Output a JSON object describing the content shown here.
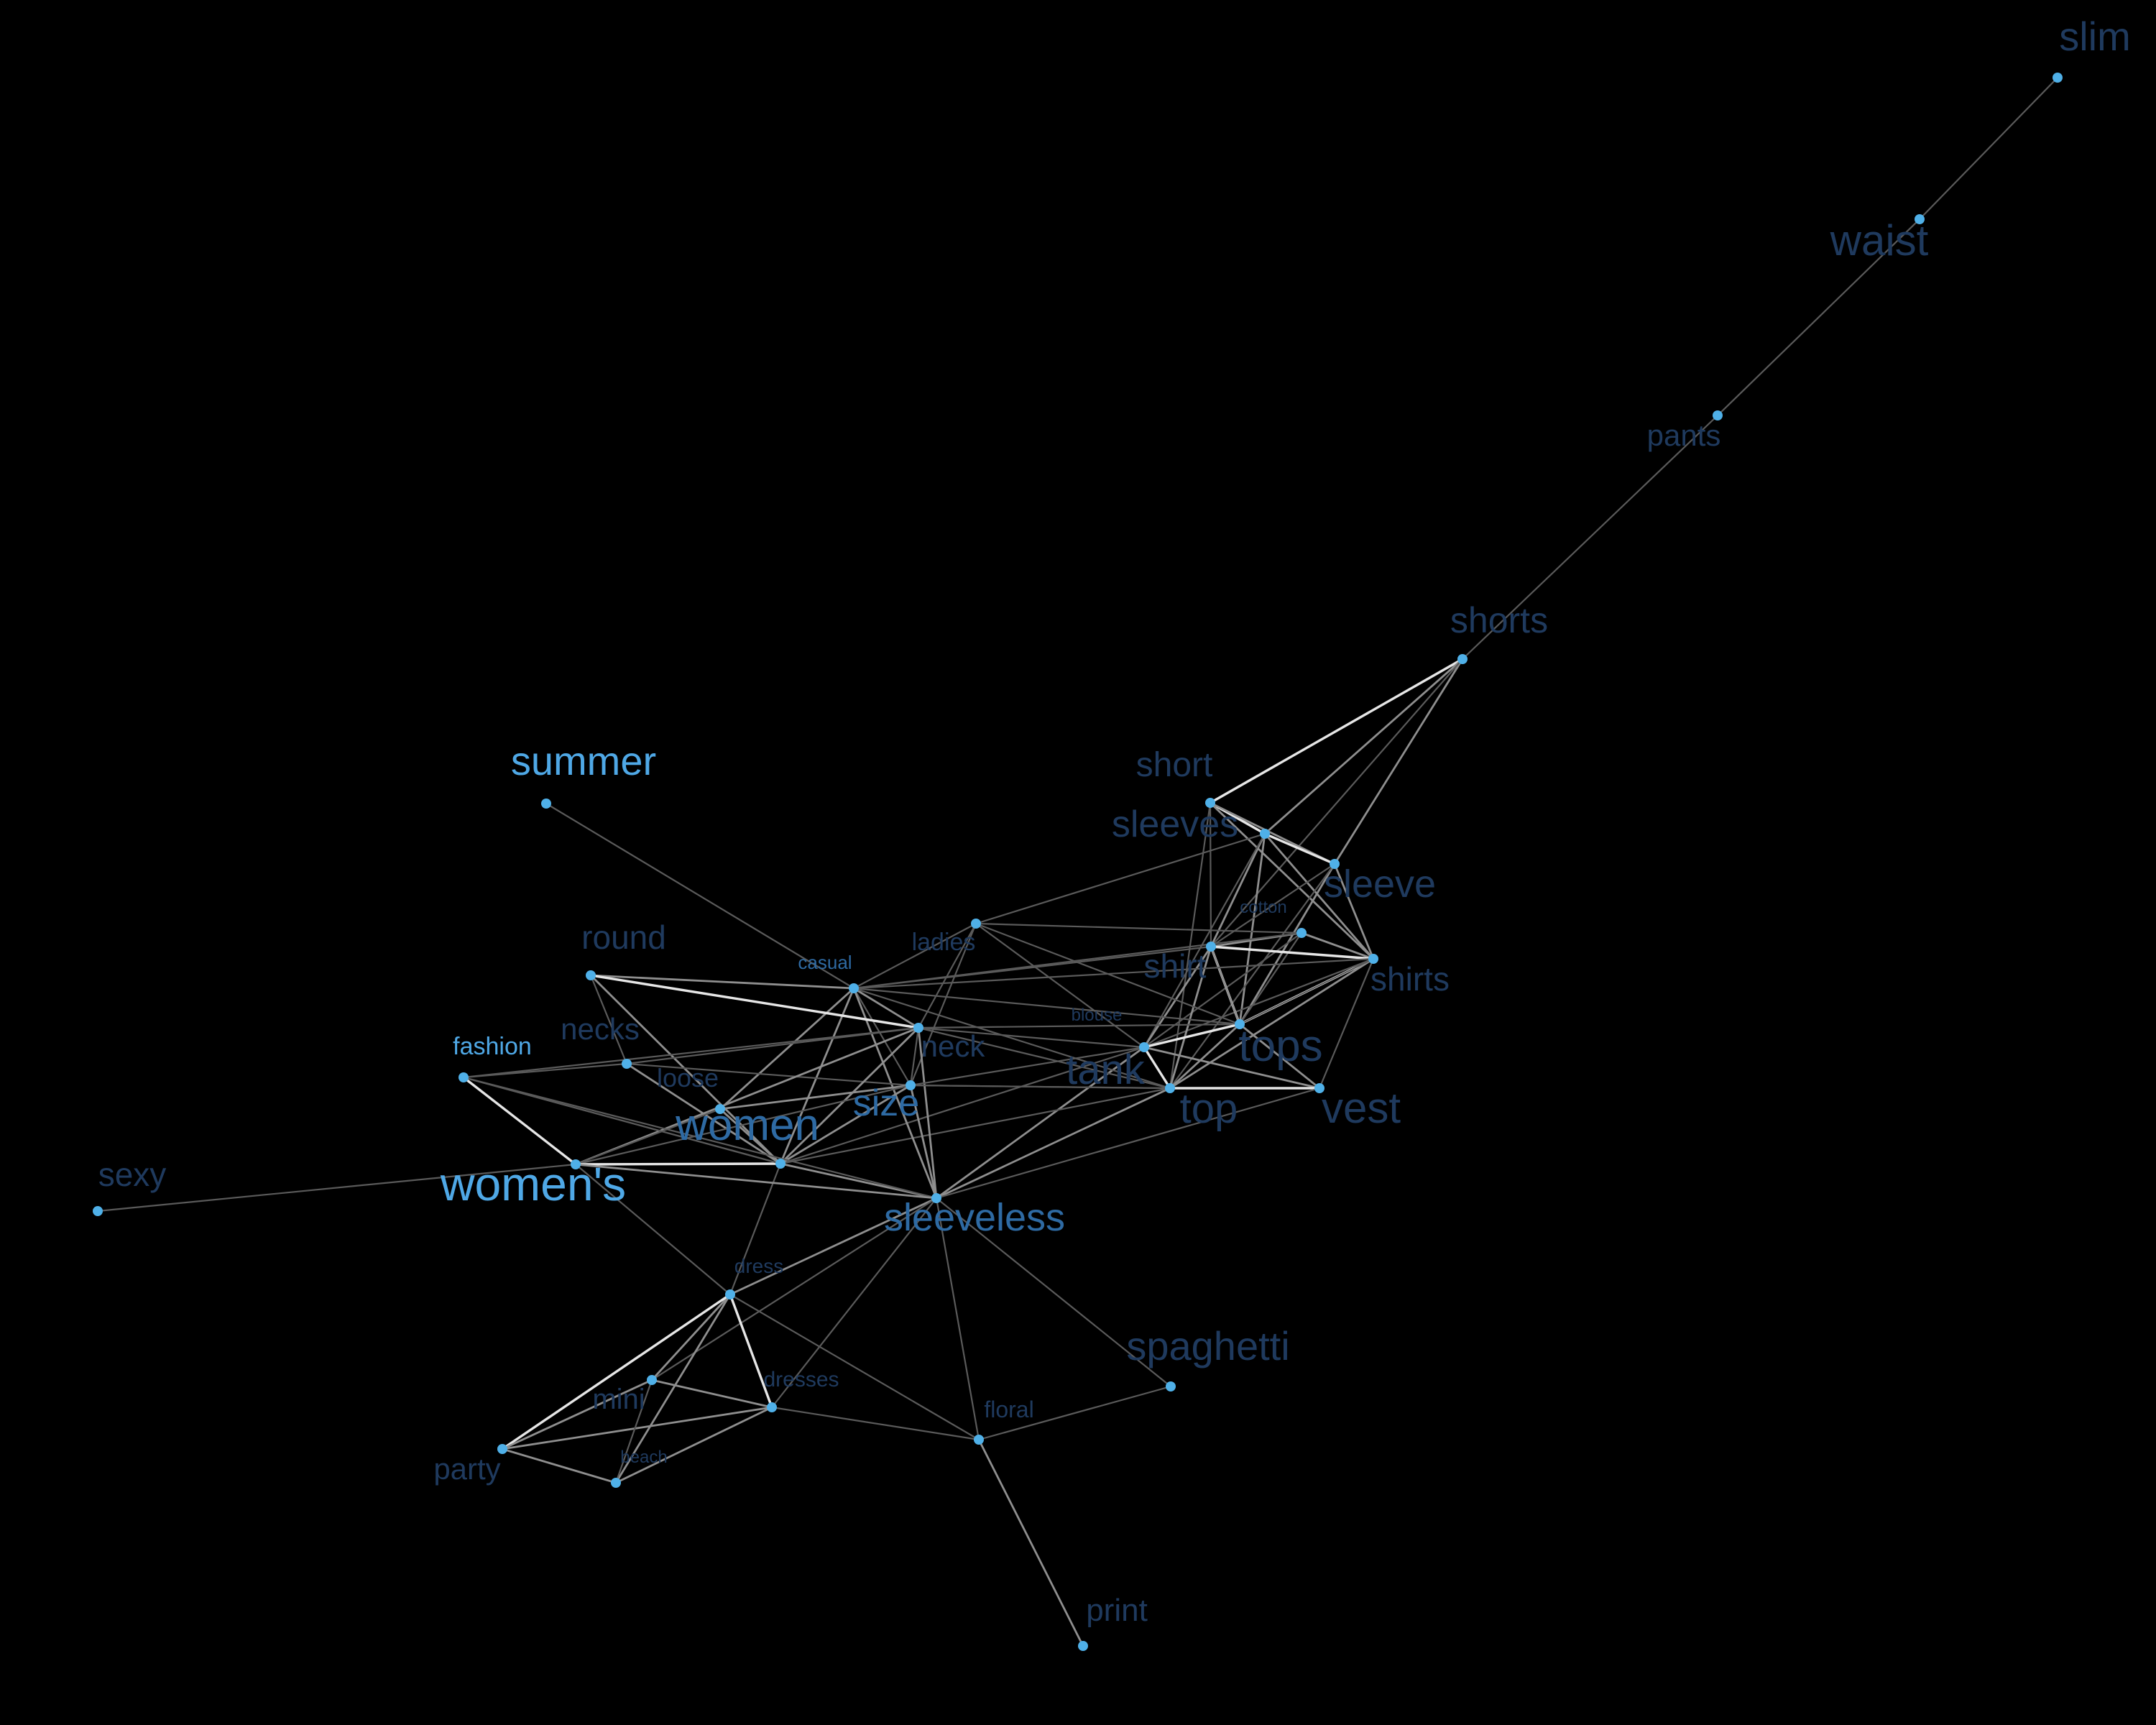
{
  "graph": {
    "node_color": "#4fb0e8",
    "background": "#000000",
    "nodes": [
      {
        "id": "slim",
        "label": "slim",
        "tone": "dark"
      },
      {
        "id": "waist",
        "label": "waist",
        "tone": "dark"
      },
      {
        "id": "pants",
        "label": "pants",
        "tone": "dark"
      },
      {
        "id": "shorts",
        "label": "shorts",
        "tone": "dark"
      },
      {
        "id": "short",
        "label": "short",
        "tone": "dark"
      },
      {
        "id": "sleeves",
        "label": "sleeves",
        "tone": "dark"
      },
      {
        "id": "sleeve",
        "label": "sleeve",
        "tone": "dark"
      },
      {
        "id": "cotton",
        "label": "cotton",
        "tone": "dark"
      },
      {
        "id": "shirts",
        "label": "shirts",
        "tone": "dark"
      },
      {
        "id": "shirt",
        "label": "shirt",
        "tone": "dark"
      },
      {
        "id": "blouse",
        "label": "blouse",
        "tone": "dark"
      },
      {
        "id": "tops",
        "label": "tops",
        "tone": "dark"
      },
      {
        "id": "tank",
        "label": "tank",
        "tone": "dark"
      },
      {
        "id": "top",
        "label": "top",
        "tone": "dark"
      },
      {
        "id": "vest",
        "label": "vest",
        "tone": "dark"
      },
      {
        "id": "summer",
        "label": "summer",
        "tone": "bright"
      },
      {
        "id": "ladies",
        "label": "ladies",
        "tone": "dark"
      },
      {
        "id": "casual",
        "label": "casual",
        "tone": "mid"
      },
      {
        "id": "round",
        "label": "round",
        "tone": "dark"
      },
      {
        "id": "necks",
        "label": "necks",
        "tone": "dark"
      },
      {
        "id": "neck",
        "label": "neck",
        "tone": "dark"
      },
      {
        "id": "loose",
        "label": "loose",
        "tone": "dark"
      },
      {
        "id": "size",
        "label": "size",
        "tone": "mid"
      },
      {
        "id": "women",
        "label": "women",
        "tone": "mid"
      },
      {
        "id": "fashion",
        "label": "fashion",
        "tone": "bright"
      },
      {
        "id": "womens",
        "label": "women's",
        "tone": "bright"
      },
      {
        "id": "sexy",
        "label": "sexy",
        "tone": "dark"
      },
      {
        "id": "sleeveless",
        "label": "sleeveless",
        "tone": "mid"
      },
      {
        "id": "dress",
        "label": "dress",
        "tone": "dark"
      },
      {
        "id": "dresses",
        "label": "dresses",
        "tone": "dark"
      },
      {
        "id": "mini",
        "label": "mini",
        "tone": "dark"
      },
      {
        "id": "beach",
        "label": "beach",
        "tone": "dark"
      },
      {
        "id": "party",
        "label": "party",
        "tone": "dark"
      },
      {
        "id": "spaghetti",
        "label": "spaghetti",
        "tone": "dark"
      },
      {
        "id": "floral",
        "label": "floral",
        "tone": "dark"
      },
      {
        "id": "print",
        "label": "print",
        "tone": "dark"
      }
    ],
    "edges": [
      [
        "slim",
        "waist",
        1
      ],
      [
        "waist",
        "pants",
        1
      ],
      [
        "pants",
        "shorts",
        1
      ],
      [
        "shorts",
        "short",
        3
      ],
      [
        "shorts",
        "sleeves",
        2
      ],
      [
        "shorts",
        "sleeve",
        2
      ],
      [
        "shorts",
        "shirt",
        1
      ],
      [
        "short",
        "sleeves",
        3
      ],
      [
        "short",
        "sleeve",
        2
      ],
      [
        "short",
        "shirts",
        2
      ],
      [
        "short",
        "shirt",
        1
      ],
      [
        "short",
        "top",
        1
      ],
      [
        "sleeves",
        "sleeve",
        3
      ],
      [
        "sleeves",
        "shirts",
        2
      ],
      [
        "sleeves",
        "tops",
        2
      ],
      [
        "sleeves",
        "shirt",
        2
      ],
      [
        "sleeves",
        "tank",
        1
      ],
      [
        "sleeves",
        "ladies",
        1
      ],
      [
        "sleeve",
        "shirts",
        2
      ],
      [
        "sleeve",
        "tops",
        2
      ],
      [
        "sleeve",
        "shirt",
        1
      ],
      [
        "sleeve",
        "top",
        1
      ],
      [
        "cotton",
        "shirt",
        2
      ],
      [
        "cotton",
        "tops",
        1
      ],
      [
        "cotton",
        "shirts",
        2
      ],
      [
        "cotton",
        "tank",
        1
      ],
      [
        "shirts",
        "shirt",
        3
      ],
      [
        "shirts",
        "tops",
        3
      ],
      [
        "shirts",
        "top",
        2
      ],
      [
        "shirts",
        "vest",
        1
      ],
      [
        "shirts",
        "blouse",
        1
      ],
      [
        "shirts",
        "tank",
        1
      ],
      [
        "shirt",
        "tops",
        3
      ],
      [
        "shirt",
        "tank",
        2
      ],
      [
        "shirt",
        "top",
        2
      ],
      [
        "shirt",
        "blouse",
        2
      ],
      [
        "shirt",
        "casual",
        1
      ],
      [
        "blouse",
        "tops",
        2
      ],
      [
        "blouse",
        "tank",
        1
      ],
      [
        "blouse",
        "neck",
        1
      ],
      [
        "tops",
        "tank",
        3
      ],
      [
        "tops",
        "top",
        2
      ],
      [
        "tops",
        "vest",
        2
      ],
      [
        "tank",
        "top",
        3
      ],
      [
        "tank",
        "vest",
        2
      ],
      [
        "tank",
        "sleeveless",
        2
      ],
      [
        "tank",
        "women",
        1
      ],
      [
        "tank",
        "neck",
        1
      ],
      [
        "top",
        "vest",
        3
      ],
      [
        "top",
        "sleeveless",
        2
      ],
      [
        "top",
        "women",
        1
      ],
      [
        "top",
        "size",
        1
      ],
      [
        "vest",
        "sleeveless",
        1
      ],
      [
        "summer",
        "casual",
        1
      ],
      [
        "ladies",
        "casual",
        1
      ],
      [
        "ladies",
        "neck",
        1
      ],
      [
        "ladies",
        "size",
        1
      ],
      [
        "ladies",
        "cotton",
        1
      ],
      [
        "ladies",
        "blouse",
        1
      ],
      [
        "ladies",
        "tank",
        1
      ],
      [
        "casual",
        "round",
        2
      ],
      [
        "casual",
        "neck",
        2
      ],
      [
        "casual",
        "loose",
        2
      ],
      [
        "casual",
        "women",
        2
      ],
      [
        "casual",
        "size",
        1
      ],
      [
        "casual",
        "sleeveless",
        2
      ],
      [
        "casual",
        "tops",
        1
      ],
      [
        "casual",
        "shirts",
        1
      ],
      [
        "casual",
        "cotton",
        1
      ],
      [
        "casual",
        "top",
        1
      ],
      [
        "round",
        "neck",
        3
      ],
      [
        "round",
        "necks",
        1
      ],
      [
        "round",
        "women",
        2
      ],
      [
        "necks",
        "women",
        2
      ],
      [
        "necks",
        "size",
        1
      ],
      [
        "necks",
        "neck",
        1
      ],
      [
        "neck",
        "women",
        2
      ],
      [
        "neck",
        "womens",
        2
      ],
      [
        "neck",
        "sleeveless",
        2
      ],
      [
        "neck",
        "size",
        1
      ],
      [
        "neck",
        "top",
        1
      ],
      [
        "neck",
        "fashion",
        1
      ],
      [
        "loose",
        "size",
        2
      ],
      [
        "loose",
        "women",
        2
      ],
      [
        "loose",
        "womens",
        1
      ],
      [
        "size",
        "women",
        2
      ],
      [
        "size",
        "womens",
        1
      ],
      [
        "size",
        "sleeveless",
        2
      ],
      [
        "size",
        "top",
        1
      ],
      [
        "size",
        "tank",
        1
      ],
      [
        "women",
        "womens",
        3
      ],
      [
        "women",
        "sleeveless",
        2
      ],
      [
        "women",
        "dress",
        1
      ],
      [
        "women",
        "fashion",
        1
      ],
      [
        "fashion",
        "womens",
        3
      ],
      [
        "fashion",
        "necks",
        1
      ],
      [
        "fashion",
        "women",
        1
      ],
      [
        "fashion",
        "sleeveless",
        1
      ],
      [
        "womens",
        "sleeveless",
        2
      ],
      [
        "womens",
        "sexy",
        1
      ],
      [
        "womens",
        "dress",
        1
      ],
      [
        "sleeveless",
        "dress",
        2
      ],
      [
        "sleeveless",
        "spaghetti",
        1
      ],
      [
        "sleeveless",
        "floral",
        1
      ],
      [
        "sleeveless",
        "dresses",
        1
      ],
      [
        "sleeveless",
        "mini",
        1
      ],
      [
        "dress",
        "dresses",
        3
      ],
      [
        "dress",
        "mini",
        2
      ],
      [
        "dress",
        "party",
        3
      ],
      [
        "dress",
        "beach",
        2
      ],
      [
        "dress",
        "floral",
        1
      ],
      [
        "dresses",
        "mini",
        2
      ],
      [
        "dresses",
        "beach",
        2
      ],
      [
        "dresses",
        "party",
        2
      ],
      [
        "dresses",
        "floral",
        1
      ],
      [
        "mini",
        "party",
        2
      ],
      [
        "mini",
        "beach",
        1
      ],
      [
        "beach",
        "party",
        2
      ],
      [
        "floral",
        "spaghetti",
        1
      ],
      [
        "floral",
        "print",
        2
      ]
    ]
  }
}
